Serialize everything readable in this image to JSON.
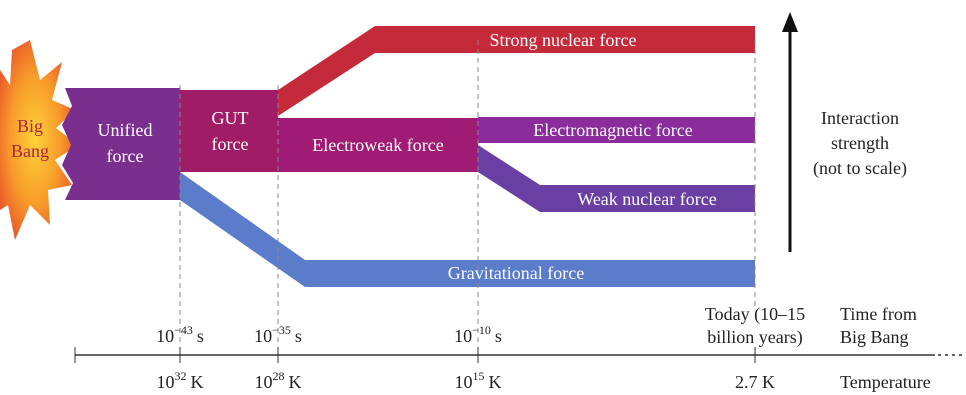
{
  "big_bang": [
    "Big",
    "Bang"
  ],
  "forces": {
    "unified": [
      "Unified",
      "force"
    ],
    "gut": [
      "GUT",
      "force"
    ],
    "electroweak": "Electroweak force",
    "strong": "Strong nuclear force",
    "electromagnetic": "Electromagnetic force",
    "weak": "Weak nuclear force",
    "gravitational": "Gravitational force"
  },
  "strength_label": [
    "Interaction",
    "strength",
    "(not to scale)"
  ],
  "time": {
    "label": [
      "Time from",
      "Big Bang"
    ],
    "marks": [
      {
        "base": "10",
        "exp": "−43",
        "unit": "s"
      },
      {
        "base": "10",
        "exp": "−35",
        "unit": "s"
      },
      {
        "base": "10",
        "exp": "−10",
        "unit": "s"
      }
    ],
    "today": [
      "Today (10–15",
      "billion years)"
    ]
  },
  "temperature": {
    "label": "Temperature",
    "marks": [
      {
        "base": "10",
        "exp": "32",
        "unit": "K"
      },
      {
        "base": "10",
        "exp": "28",
        "unit": "K"
      },
      {
        "base": "10",
        "exp": "15",
        "unit": "K"
      }
    ],
    "today": "2.7 K"
  }
}
